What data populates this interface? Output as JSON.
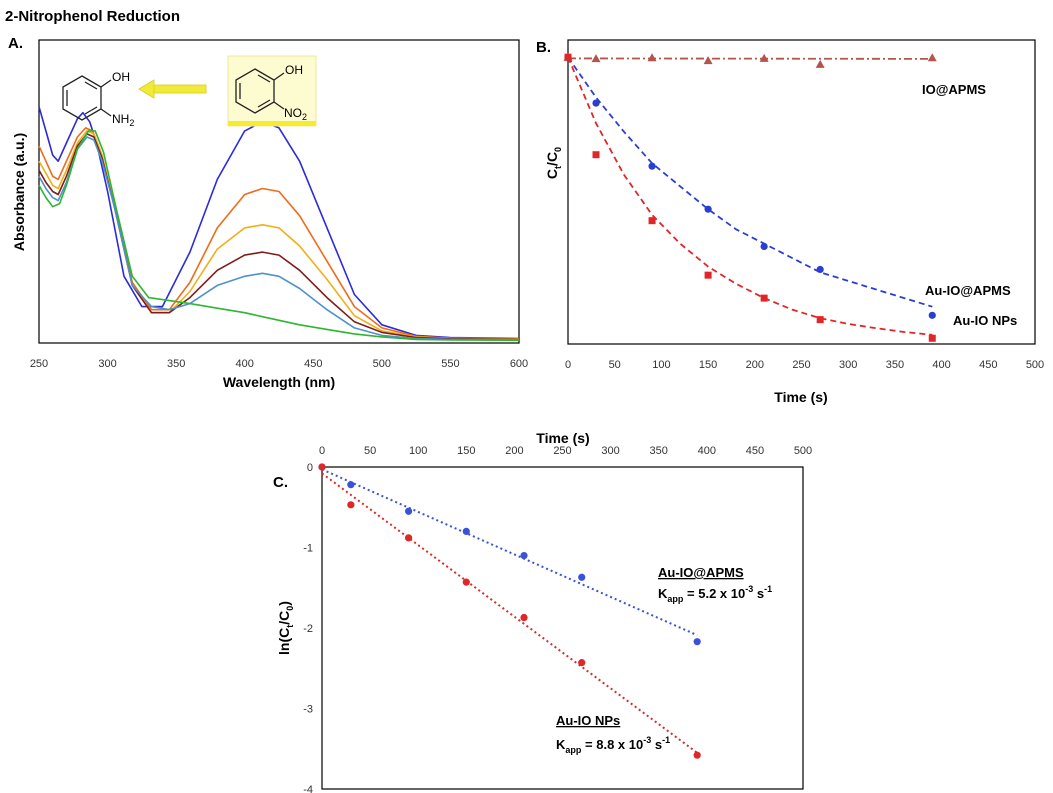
{
  "figure": {
    "title": "2-Nitrophenol Reduction"
  },
  "panels": {
    "a": "A.",
    "b": "B.",
    "c": "C."
  },
  "scheme": {
    "left": {
      "oh": "OH",
      "amine_main": "NH",
      "amine_sub": "2"
    },
    "right": {
      "oh": "OH",
      "nitro_main": "NO",
      "nitro_sub": "2"
    }
  },
  "annotations": {
    "c1": {
      "name": "Au-IO@APMS",
      "k_main": "K",
      "k_sub": "app",
      "k_eq": " = 5.2 x 10",
      "k_exp": "-3",
      "k_unit": " s",
      "k_unit_exp": "-1"
    },
    "c2": {
      "name": "Au-IO NPs",
      "k_main": "K",
      "k_sub": "app",
      "k_eq": " = 8.8 x 10",
      "k_exp": "-3",
      "k_unit": " s",
      "k_unit_exp": "-1"
    }
  },
  "chart_data": [
    {
      "id": "A",
      "type": "line",
      "xlabel": "Wavelength (nm)",
      "ylabel": "Absorbance (a.u.)",
      "xlim": [
        250,
        600
      ],
      "xticks": [
        250,
        300,
        350,
        400,
        450,
        500,
        550,
        600
      ],
      "ylim": [
        0,
        1
      ],
      "yticks_shown": false,
      "grid": false,
      "legend": "none",
      "series": [
        {
          "color": "#2b2bd8",
          "x": [
            250,
            255,
            260,
            264,
            270,
            278,
            282,
            287,
            292,
            300,
            312,
            325,
            340,
            360,
            380,
            400,
            413,
            425,
            440,
            460,
            480,
            500,
            525,
            550,
            600
          ],
          "y": [
            0.78,
            0.7,
            0.62,
            0.6,
            0.66,
            0.74,
            0.76,
            0.73,
            0.66,
            0.5,
            0.22,
            0.12,
            0.12,
            0.3,
            0.54,
            0.7,
            0.73,
            0.71,
            0.6,
            0.38,
            0.16,
            0.06,
            0.025,
            0.018,
            0.015
          ]
        },
        {
          "color": "#ef6c1a",
          "x": [
            250,
            255,
            260,
            264,
            270,
            278,
            284,
            289,
            295,
            305,
            318,
            332,
            345,
            360,
            380,
            400,
            413,
            425,
            440,
            460,
            480,
            500,
            525,
            550,
            600
          ],
          "y": [
            0.65,
            0.6,
            0.55,
            0.54,
            0.6,
            0.68,
            0.71,
            0.7,
            0.63,
            0.45,
            0.2,
            0.11,
            0.11,
            0.2,
            0.38,
            0.49,
            0.51,
            0.5,
            0.42,
            0.27,
            0.12,
            0.05,
            0.022,
            0.016,
            0.014
          ]
        },
        {
          "color": "#f2ae16",
          "x": [
            250,
            255,
            260,
            264,
            270,
            278,
            285,
            290,
            296,
            305,
            318,
            332,
            345,
            360,
            380,
            400,
            413,
            425,
            440,
            460,
            480,
            500,
            525,
            550,
            600
          ],
          "y": [
            0.6,
            0.56,
            0.52,
            0.51,
            0.57,
            0.66,
            0.7,
            0.69,
            0.62,
            0.45,
            0.19,
            0.1,
            0.1,
            0.17,
            0.31,
            0.38,
            0.39,
            0.38,
            0.32,
            0.21,
            0.09,
            0.04,
            0.02,
            0.015,
            0.013
          ]
        },
        {
          "color": "#7b1f1a",
          "x": [
            250,
            255,
            260,
            264,
            270,
            278,
            285,
            290,
            296,
            305,
            318,
            332,
            345,
            360,
            380,
            400,
            413,
            425,
            440,
            460,
            480,
            500,
            525,
            550,
            600
          ],
          "y": [
            0.57,
            0.53,
            0.5,
            0.49,
            0.55,
            0.65,
            0.69,
            0.68,
            0.61,
            0.45,
            0.19,
            0.1,
            0.1,
            0.15,
            0.24,
            0.29,
            0.3,
            0.29,
            0.24,
            0.15,
            0.07,
            0.035,
            0.018,
            0.014,
            0.012
          ]
        },
        {
          "color": "#4d92cc",
          "x": [
            250,
            255,
            260,
            264,
            270,
            278,
            285,
            290,
            296,
            305,
            318,
            332,
            345,
            360,
            380,
            400,
            413,
            425,
            440,
            460,
            480,
            500,
            525,
            550,
            600
          ],
          "y": [
            0.55,
            0.51,
            0.48,
            0.47,
            0.53,
            0.64,
            0.68,
            0.67,
            0.6,
            0.45,
            0.19,
            0.12,
            0.11,
            0.13,
            0.19,
            0.22,
            0.23,
            0.22,
            0.18,
            0.11,
            0.05,
            0.025,
            0.015,
            0.012,
            0.011
          ]
        },
        {
          "color": "#2fb52f",
          "x": [
            250,
            255,
            260,
            265,
            270,
            278,
            286,
            291,
            297,
            306,
            318,
            330,
            345,
            360,
            380,
            400,
            420,
            440,
            460,
            480,
            500,
            525,
            550,
            600
          ],
          "y": [
            0.52,
            0.48,
            0.45,
            0.46,
            0.52,
            0.64,
            0.7,
            0.7,
            0.63,
            0.45,
            0.22,
            0.15,
            0.14,
            0.13,
            0.115,
            0.1,
            0.08,
            0.06,
            0.045,
            0.03,
            0.02,
            0.012,
            0.01,
            0.009
          ]
        }
      ]
    },
    {
      "id": "B",
      "type": "scatter",
      "xlabel": "Time (s)",
      "ylabel_main": "C",
      "ylabel_sub1": "t",
      "ylabel_mid": "/C",
      "ylabel_sub2": "0",
      "xlim": [
        0,
        500
      ],
      "xticks": [
        0,
        50,
        100,
        150,
        200,
        250,
        300,
        350,
        400,
        450,
        500
      ],
      "ylim": [
        0,
        1.06
      ],
      "yticks_shown": false,
      "grid": false,
      "series": [
        {
          "name": "IO@APMS",
          "color": "#b5534d",
          "marker": "triangle",
          "line": "dashdot",
          "x": [
            0,
            30,
            90,
            150,
            210,
            270,
            390
          ],
          "y": [
            1.0,
            0.995,
            0.998,
            0.988,
            0.996,
            0.975,
            0.998
          ],
          "fit_x": [
            0,
            390
          ],
          "fit_y": [
            0.996,
            0.994
          ]
        },
        {
          "name": "Au-IO@APMS",
          "color": "#2a3fd0",
          "marker": "circle",
          "line": "dashed",
          "x": [
            0,
            30,
            90,
            150,
            210,
            270,
            390
          ],
          "y": [
            1.0,
            0.84,
            0.62,
            0.47,
            0.34,
            0.26,
            0.1
          ],
          "fit_x": [
            0,
            30,
            60,
            90,
            120,
            150,
            180,
            210,
            240,
            270,
            300,
            330,
            360,
            390
          ],
          "fit_y": [
            1.0,
            0.86,
            0.74,
            0.63,
            0.55,
            0.47,
            0.4,
            0.35,
            0.3,
            0.25,
            0.22,
            0.19,
            0.16,
            0.13
          ]
        },
        {
          "name": "Au-IO NPs",
          "color": "#e02626",
          "marker": "square",
          "line": "dashed",
          "x": [
            0,
            30,
            90,
            150,
            210,
            270,
            390
          ],
          "y": [
            1.0,
            0.66,
            0.43,
            0.24,
            0.16,
            0.085,
            0.02
          ],
          "fit_x": [
            0,
            30,
            60,
            90,
            120,
            150,
            180,
            210,
            240,
            270,
            300,
            330,
            360,
            390
          ],
          "fit_y": [
            1.0,
            0.77,
            0.59,
            0.45,
            0.35,
            0.27,
            0.21,
            0.16,
            0.12,
            0.09,
            0.07,
            0.055,
            0.042,
            0.032
          ]
        }
      ]
    },
    {
      "id": "C",
      "type": "scatter",
      "xlabel": "Time (s)",
      "ylabel_main": "ln(C",
      "ylabel_sub1": "t",
      "ylabel_mid": "/C",
      "ylabel_sub2": "0",
      "ylabel_end": ")",
      "xlim": [
        0,
        500
      ],
      "xticks": [
        0,
        50,
        100,
        150,
        200,
        250,
        300,
        350,
        400,
        450,
        500
      ],
      "ylim": [
        -4,
        0
      ],
      "yticks": [
        0,
        -1,
        -2,
        -3,
        -4
      ],
      "grid": false,
      "series": [
        {
          "name": "Au-IO@APMS",
          "color": "#3a52d8",
          "marker": "circle",
          "line": "dotted",
          "x": [
            0,
            30,
            90,
            150,
            210,
            270,
            390
          ],
          "y": [
            0,
            -0.22,
            -0.55,
            -0.8,
            -1.1,
            -1.37,
            -2.17
          ],
          "fit_x": [
            0,
            390
          ],
          "fit_y": [
            -0.03,
            -2.09
          ]
        },
        {
          "name": "Au-IO NPs",
          "color": "#e02626",
          "marker": "circle",
          "line": "dotted",
          "x": [
            0,
            30,
            90,
            150,
            210,
            270,
            390
          ],
          "y": [
            0,
            -0.47,
            -0.88,
            -1.43,
            -1.87,
            -2.43,
            -3.58
          ],
          "fit_x": [
            0,
            390
          ],
          "fit_y": [
            -0.08,
            -3.55
          ]
        }
      ]
    }
  ]
}
